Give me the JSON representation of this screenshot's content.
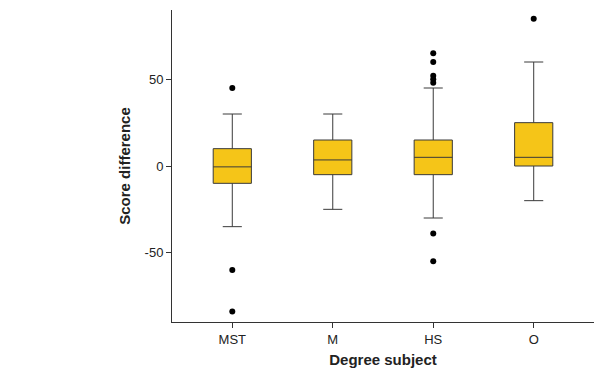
{
  "chart_data": {
    "type": "box",
    "x_label": "Degree subject",
    "y_label": "Score difference",
    "categories": [
      "MST",
      "M",
      "HS",
      "O"
    ],
    "q1": [
      -10,
      -5,
      -5,
      0
    ],
    "median": [
      -0.5,
      3.5,
      5,
      5
    ],
    "q3": [
      10,
      15,
      15,
      25
    ],
    "whisker_low": [
      -35,
      -25,
      -30,
      -20
    ],
    "whisker_high": [
      30,
      30,
      45,
      60
    ],
    "outliers": [
      [
        45,
        -60,
        -84
      ],
      [],
      [
        65,
        60,
        52,
        50,
        48,
        -39,
        -55
      ],
      [
        85
      ]
    ],
    "color": "#f5c518",
    "ylim": [
      -90,
      90
    ],
    "yticks": [
      -50,
      0,
      50
    ],
    "grid": false
  }
}
